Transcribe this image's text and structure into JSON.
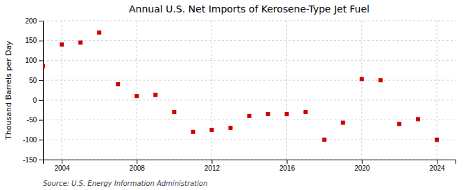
{
  "chart_data": {
    "type": "scatter",
    "title": "Annual U.S. Net Imports of Kerosene-Type Jet Fuel",
    "y_label": "Thousand Barrels per Day",
    "source": "Source: U.S. Energy Information Administration",
    "x": [
      2003,
      2004,
      2005,
      2006,
      2007,
      2008,
      2009,
      2010,
      2011,
      2012,
      2013,
      2014,
      2015,
      2016,
      2017,
      2018,
      2019,
      2020,
      2021,
      2022,
      2023,
      2024
    ],
    "values": [
      85,
      140,
      145,
      170,
      40,
      10,
      13,
      -30,
      -80,
      -75,
      -70,
      -40,
      -35,
      -35,
      -30,
      -100,
      -57,
      53,
      50,
      -60,
      -48,
      -100
    ],
    "color": "#cc0000",
    "marker": "square",
    "xlim": [
      2003.0,
      2025.0
    ],
    "ylim": [
      -150,
      200
    ],
    "xticks": [
      2004,
      2008,
      2012,
      2016,
      2020,
      2024
    ],
    "yticks": [
      -150,
      -100,
      -50,
      0,
      50,
      100,
      150,
      200
    ],
    "grid": true
  }
}
